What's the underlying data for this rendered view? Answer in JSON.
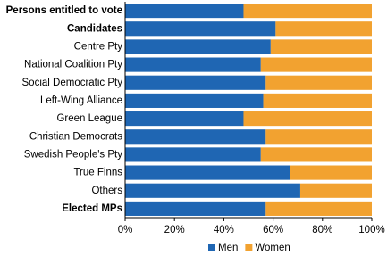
{
  "chart_data": {
    "type": "stacked_barh",
    "categories": [
      "Persons entitled to vote",
      "Candidates",
      "Centre Pty",
      "National Coalition Pty",
      "Social Democratic Pty",
      "Left-Wing Alliance",
      "Green League",
      "Christian Democrats",
      "Swedish People's Pty",
      "True Finns",
      "Others",
      "Elected MPs"
    ],
    "emphasized": [
      true,
      true,
      false,
      false,
      false,
      false,
      false,
      false,
      false,
      false,
      false,
      true
    ],
    "series": [
      {
        "name": "Men",
        "color": "#1f66b3",
        "values": [
          48,
          61,
          59,
          55,
          57,
          56,
          48,
          57,
          55,
          67,
          71,
          57
        ]
      },
      {
        "name": "Women",
        "color": "#f2a230",
        "values": [
          52,
          39,
          41,
          45,
          43,
          44,
          52,
          43,
          45,
          33,
          29,
          43
        ]
      }
    ],
    "xlim": [
      0,
      100
    ],
    "xticks": [
      {
        "value": 0,
        "label": "0%"
      },
      {
        "value": 20,
        "label": "20%"
      },
      {
        "value": 40,
        "label": "40%"
      },
      {
        "value": 60,
        "label": "60%"
      },
      {
        "value": 80,
        "label": "80%"
      },
      {
        "value": 100,
        "label": "100%"
      }
    ],
    "legend": "bottom"
  }
}
